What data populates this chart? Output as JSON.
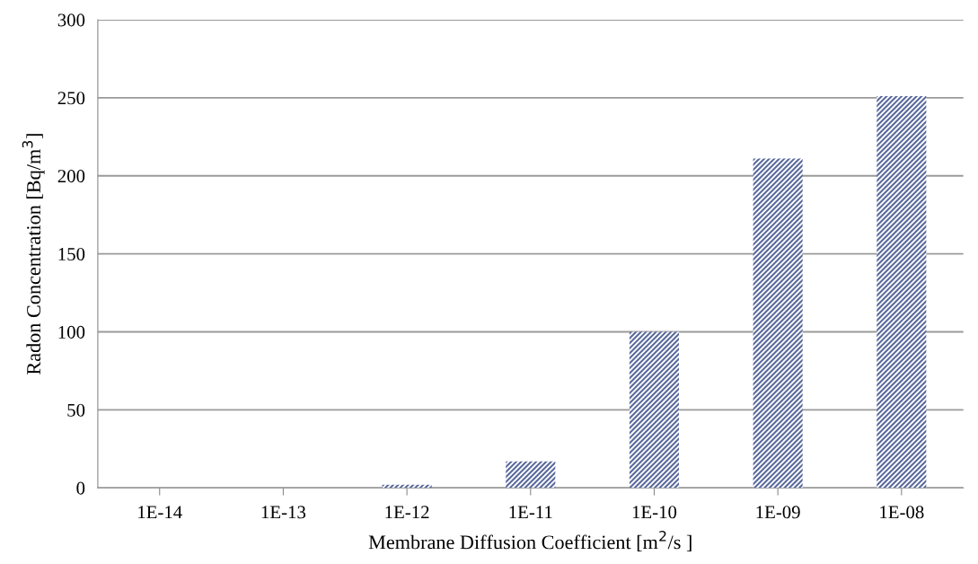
{
  "chart_data": {
    "type": "bar",
    "xlabel": "Membrane Diffusion Coefficient [m$^{2}$/s ]",
    "ylabel": "Radon Concentration [Bq/m$^{3}$]",
    "categories": [
      "1E-14",
      "1E-13",
      "1E-12",
      "1E-11",
      "1E-10",
      "1E-09",
      "1E-08"
    ],
    "values": [
      0,
      0,
      2,
      17,
      100,
      211,
      251
    ],
    "color": "#5a6a9c",
    "ylim": [
      0,
      300
    ],
    "yticks": [
      0,
      50,
      100,
      150,
      200,
      250,
      300
    ],
    "grid": "y",
    "legend": false
  }
}
